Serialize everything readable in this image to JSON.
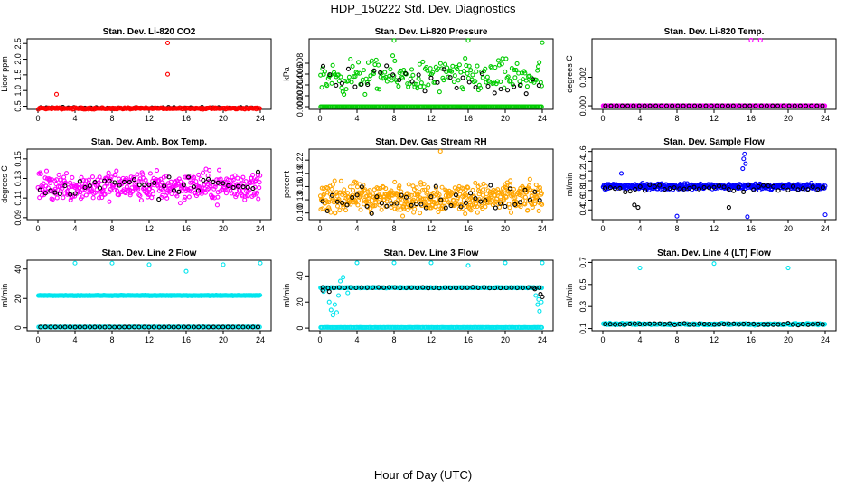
{
  "page": {
    "title": "HDP_150222  Std. Dev. Diagnostics",
    "xlabel": "Hour of Day (UTC)"
  },
  "colors": {
    "black": "#000000",
    "red": "#ff0000",
    "green": "#00cc00",
    "magenta": "#ff00ff",
    "orange": "#ffa500",
    "blue": "#0000ff",
    "cyan": "#00e5ee"
  },
  "chart_data": [
    {
      "type": "scatter",
      "title": "Stan. Dev. Li-820 CO2",
      "ylabel": "Licor ppm",
      "xlim": [
        0,
        24
      ],
      "xticks": [
        0,
        4,
        8,
        12,
        16,
        20,
        24
      ],
      "xtick_labels": [
        "0",
        "4",
        "8",
        "12",
        "16",
        "20",
        "24"
      ],
      "ylim": [
        0.4,
        2.65
      ],
      "yticks": [
        0.5,
        1.0,
        1.5,
        2.0,
        2.5
      ],
      "ytick_labels": [
        "0.5",
        "1.0",
        "1.5",
        "2.0",
        "2.5"
      ],
      "series": [
        {
          "name": "black",
          "color": "#000000",
          "base": 0.45,
          "noise": 0.03,
          "count": 40
        },
        {
          "name": "red",
          "color": "#ff0000",
          "base": 0.43,
          "noise": 0.04,
          "count": 240,
          "outliers": [
            [
              2.0,
              0.88
            ],
            [
              14.0,
              2.52
            ],
            [
              14.0,
              1.52
            ]
          ]
        }
      ]
    },
    {
      "type": "scatter",
      "title": "Stan. Dev. Li-820 Pressure",
      "ylabel": "kPa",
      "xlim": [
        0,
        24
      ],
      "xticks": [
        0,
        4,
        8,
        12,
        16,
        20,
        24
      ],
      "xtick_labels": [
        "0",
        "4",
        "8",
        "12",
        "16",
        "20",
        "24"
      ],
      "ylim": [
        -0.0005,
        0.0125
      ],
      "yticks": [
        0.0,
        0.002,
        0.004,
        0.006,
        0.008
      ],
      "ytick_labels": [
        "0.000",
        "0.002",
        "0.004",
        "0.006",
        "0.008"
      ],
      "series": [
        {
          "name": "green-zero",
          "color": "#00cc00",
          "base": 0.0,
          "noise": 0.0,
          "count": 200
        },
        {
          "name": "green",
          "color": "#00cc00",
          "base": 0.0055,
          "noise": 0.0045,
          "count": 200,
          "outliers": [
            [
              8.0,
              0.0122
            ],
            [
              16.0,
              0.0122
            ],
            [
              24.0,
              0.0118
            ]
          ]
        },
        {
          "name": "black",
          "color": "#000000",
          "base": 0.0045,
          "noise": 0.0045,
          "count": 35
        }
      ]
    },
    {
      "type": "scatter",
      "title": "Stan. Dev. Li-820 Temp.",
      "ylabel": "degrees C",
      "xlim": [
        0,
        24
      ],
      "xticks": [
        0,
        4,
        8,
        12,
        16,
        20,
        24
      ],
      "xtick_labels": [
        "0",
        "4",
        "8",
        "12",
        "16",
        "20",
        "24"
      ],
      "ylim": [
        -0.00025,
        0.0047
      ],
      "yticks": [
        0.0,
        0.002
      ],
      "ytick_labels": [
        "0.000",
        "0.002"
      ],
      "series": [
        {
          "name": "magenta",
          "color": "#ff00ff",
          "base": 0.0,
          "noise": 0.0,
          "count": 240,
          "outliers": [
            [
              16.0,
              0.0046
            ],
            [
              17.0,
              0.0046
            ]
          ]
        },
        {
          "name": "black",
          "color": "#000000",
          "base": 0.0,
          "noise": 0.0,
          "count": 40
        }
      ]
    },
    {
      "type": "scatter",
      "title": "Stan. Dev. Amb. Box Temp.",
      "ylabel": "degrees C",
      "xlim": [
        0,
        24
      ],
      "xticks": [
        0,
        4,
        8,
        12,
        16,
        20,
        24
      ],
      "xtick_labels": [
        "0",
        "4",
        "8",
        "12",
        "16",
        "20",
        "24"
      ],
      "ylim": [
        0.088,
        0.16
      ],
      "yticks": [
        0.09,
        0.11,
        0.13,
        0.15
      ],
      "ytick_labels": [
        "0.09",
        "0.11",
        "0.13",
        "0.15"
      ],
      "series": [
        {
          "name": "magenta",
          "color": "#ff00ff",
          "base": 0.122,
          "noise": 0.022,
          "count": 420
        },
        {
          "name": "black",
          "color": "#000000",
          "base": 0.122,
          "noise": 0.018,
          "count": 45
        }
      ]
    },
    {
      "type": "scatter",
      "title": "Stan. Dev. Gas Stream RH",
      "ylabel": "percent",
      "xlim": [
        0,
        24
      ],
      "xticks": [
        0,
        4,
        8,
        12,
        16,
        20,
        24
      ],
      "xtick_labels": [
        "0",
        "4",
        "8",
        "12",
        "16",
        "20",
        "24"
      ],
      "ylim": [
        0.085,
        0.245
      ],
      "yticks": [
        0.1,
        0.13,
        0.16,
        0.19,
        0.22
      ],
      "ytick_labels": [
        "0.10",
        "0.13",
        "0.16",
        "0.19",
        "0.22"
      ],
      "series": [
        {
          "name": "orange",
          "color": "#ffa500",
          "base": 0.135,
          "noise": 0.048,
          "count": 480,
          "outliers": [
            [
              13.0,
              0.24
            ]
          ]
        },
        {
          "name": "black",
          "color": "#000000",
          "base": 0.13,
          "noise": 0.04,
          "count": 45
        }
      ]
    },
    {
      "type": "scatter",
      "title": "Stan. Dev. Sample Flow",
      "ylabel": "ml/min",
      "xlim": [
        0,
        24
      ],
      "xticks": [
        0,
        4,
        8,
        12,
        16,
        20,
        24
      ],
      "xtick_labels": [
        "0",
        "4",
        "8",
        "12",
        "16",
        "20",
        "24"
      ],
      "ylim": [
        0.2,
        1.65
      ],
      "yticks": [
        0.4,
        0.6,
        0.8,
        1.0,
        1.2,
        1.4,
        1.6
      ],
      "ytick_labels": [
        "0.4",
        "0.6",
        "0.8",
        "1.0",
        "1.2",
        "1.4",
        "1.6"
      ],
      "series": [
        {
          "name": "blue",
          "color": "#0000ff",
          "base": 0.88,
          "noise": 0.09,
          "count": 420,
          "outliers": [
            [
              2.0,
              1.15
            ],
            [
              8.0,
              0.27
            ],
            [
              15.3,
              1.55
            ],
            [
              15.2,
              1.45
            ],
            [
              15.4,
              1.35
            ],
            [
              15.1,
              1.25
            ],
            [
              15.6,
              0.26
            ],
            [
              24.0,
              0.3
            ]
          ]
        },
        {
          "name": "black",
          "color": "#000000",
          "base": 0.84,
          "noise": 0.12,
          "count": 45,
          "outliers": [
            [
              3.4,
              0.5
            ],
            [
              3.8,
              0.45
            ],
            [
              13.6,
              0.45
            ]
          ]
        }
      ]
    },
    {
      "type": "scatter",
      "title": "Stan. Dev. Line 2 Flow",
      "ylabel": "ml/min",
      "xlim": [
        0,
        24
      ],
      "xticks": [
        0,
        4,
        8,
        12,
        16,
        20,
        24
      ],
      "xtick_labels": [
        "0",
        "4",
        "8",
        "12",
        "16",
        "20",
        "24"
      ],
      "ylim": [
        -2,
        46
      ],
      "yticks": [
        0,
        20,
        40
      ],
      "ytick_labels": [
        "0",
        "20",
        "40"
      ],
      "series": [
        {
          "name": "cyan-upper",
          "color": "#00e5ee",
          "base": 22.0,
          "noise": 0.3,
          "count": 300,
          "outliers": [
            [
              4.0,
              44
            ],
            [
              8.0,
              44
            ],
            [
              12.0,
              43
            ],
            [
              16.0,
              38.5
            ],
            [
              20.0,
              43
            ],
            [
              24.0,
              44
            ]
          ]
        },
        {
          "name": "cyan-zero",
          "color": "#00e5ee",
          "base": 0.5,
          "noise": 0.1,
          "count": 200
        },
        {
          "name": "black",
          "color": "#000000",
          "base": 0.5,
          "noise": 0.1,
          "count": 45
        }
      ]
    },
    {
      "type": "scatter",
      "title": "Stan. Dev. Line 3 Flow",
      "ylabel": "ml/min",
      "xlim": [
        0,
        24
      ],
      "xticks": [
        0,
        4,
        8,
        12,
        16,
        20,
        24
      ],
      "xtick_labels": [
        "0",
        "4",
        "8",
        "12",
        "16",
        "20",
        "24"
      ],
      "ylim": [
        -2,
        52
      ],
      "yticks": [
        0,
        20,
        40
      ],
      "ytick_labels": [
        "0",
        "20",
        "40"
      ],
      "series": [
        {
          "name": "cyan-zero",
          "color": "#00e5ee",
          "base": 0.5,
          "noise": 0.1,
          "count": 200
        },
        {
          "name": "cyan-upper",
          "color": "#00e5ee",
          "base": 31.0,
          "noise": 0.4,
          "count": 220,
          "outliers": [
            [
              0.4,
              28
            ],
            [
              0.8,
              30
            ],
            [
              1.0,
              20
            ],
            [
              1.2,
              14
            ],
            [
              1.4,
              10
            ],
            [
              1.6,
              18
            ],
            [
              1.8,
              12
            ],
            [
              2.0,
              25
            ],
            [
              2.2,
              36
            ],
            [
              2.5,
              39
            ],
            [
              3.0,
              27
            ],
            [
              4.0,
              50
            ],
            [
              8.0,
              50
            ],
            [
              12.0,
              50
            ],
            [
              16.0,
              48
            ],
            [
              20.0,
              50
            ],
            [
              24.0,
              50
            ],
            [
              23.3,
              25
            ],
            [
              23.5,
              18
            ],
            [
              23.7,
              13
            ],
            [
              23.9,
              20
            ],
            [
              23.6,
              22
            ]
          ]
        },
        {
          "name": "black",
          "color": "#000000",
          "base": 31.0,
          "noise": 0.5,
          "count": 40,
          "outliers": [
            [
              0.3,
              29
            ],
            [
              1.0,
              28
            ],
            [
              23.2,
              30
            ],
            [
              23.8,
              26
            ],
            [
              24.0,
              24
            ]
          ]
        }
      ]
    },
    {
      "type": "scatter",
      "title": "Stan. Dev. Line 4 (LT) Flow",
      "ylabel": "ml/min",
      "xlim": [
        0,
        24
      ],
      "xticks": [
        0,
        4,
        8,
        12,
        16,
        20,
        24
      ],
      "xtick_labels": [
        "0",
        "4",
        "8",
        "12",
        "16",
        "20",
        "24"
      ],
      "ylim": [
        0.08,
        0.72
      ],
      "yticks": [
        0.1,
        0.3,
        0.5,
        0.7
      ],
      "ytick_labels": [
        "0.1",
        "0.3",
        "0.5",
        "0.7"
      ],
      "series": [
        {
          "name": "cyan",
          "color": "#00e5ee",
          "base": 0.14,
          "noise": 0.012,
          "count": 260,
          "outliers": [
            [
              4.0,
              0.65
            ],
            [
              12.0,
              0.69
            ],
            [
              20.0,
              0.65
            ]
          ]
        },
        {
          "name": "black",
          "color": "#000000",
          "base": 0.14,
          "noise": 0.012,
          "count": 45
        }
      ]
    }
  ]
}
